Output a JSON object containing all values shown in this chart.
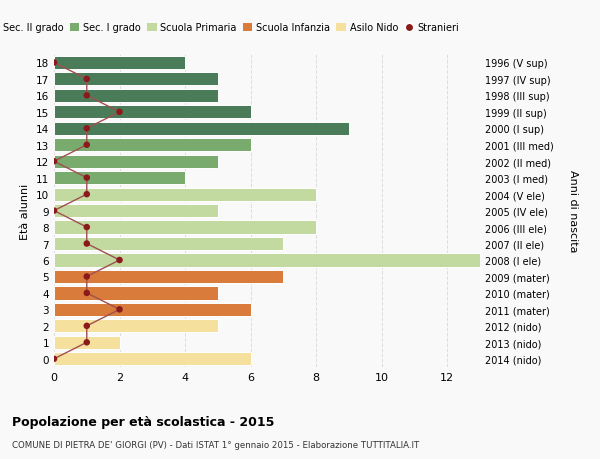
{
  "ages": [
    18,
    17,
    16,
    15,
    14,
    13,
    12,
    11,
    10,
    9,
    8,
    7,
    6,
    5,
    4,
    3,
    2,
    1,
    0
  ],
  "right_labels": [
    "1996 (V sup)",
    "1997 (IV sup)",
    "1998 (III sup)",
    "1999 (II sup)",
    "2000 (I sup)",
    "2001 (III med)",
    "2002 (II med)",
    "2003 (I med)",
    "2004 (V ele)",
    "2005 (IV ele)",
    "2006 (III ele)",
    "2007 (II ele)",
    "2008 (I ele)",
    "2009 (mater)",
    "2010 (mater)",
    "2011 (mater)",
    "2012 (nido)",
    "2013 (nido)",
    "2014 (nido)"
  ],
  "bar_values": [
    4,
    5,
    5,
    6,
    9,
    6,
    5,
    4,
    8,
    5,
    8,
    7,
    13,
    7,
    5,
    6,
    5,
    2,
    6
  ],
  "stranieri": [
    0,
    1,
    1,
    2,
    1,
    1,
    0,
    1,
    1,
    0,
    1,
    1,
    2,
    1,
    1,
    2,
    1,
    1,
    0
  ],
  "bar_colors": [
    "#4a7c59",
    "#4a7c59",
    "#4a7c59",
    "#4a7c59",
    "#4a7c59",
    "#7aab6e",
    "#7aab6e",
    "#7aab6e",
    "#c2d9a0",
    "#c2d9a0",
    "#c2d9a0",
    "#c2d9a0",
    "#c2d9a0",
    "#d97b3a",
    "#d97b3a",
    "#d97b3a",
    "#f5e09e",
    "#f5e09e",
    "#f5e09e"
  ],
  "legend_labels": [
    "Sec. II grado",
    "Sec. I grado",
    "Scuola Primaria",
    "Scuola Infanzia",
    "Asilo Nido",
    "Stranieri"
  ],
  "legend_colors": [
    "#4a7c59",
    "#7aab6e",
    "#c2d9a0",
    "#d97b3a",
    "#f5e09e",
    "#9b1a1a"
  ],
  "title_bold": "Popolazione per età scolastica - 2015",
  "subtitle": "COMUNE DI PIETRA DE' GIORGI (PV) - Dati ISTAT 1° gennaio 2015 - Elaborazione TUTTITALIA.IT",
  "ylabel": "Età alunni",
  "right_ylabel": "Anni di nascita",
  "xlim": [
    0,
    13
  ],
  "ylim_bottom": -0.5,
  "ylim_top": 18.5,
  "background_color": "#f9f9f9",
  "grid_color": "#dddddd",
  "stranieri_color": "#8b1a1a",
  "stranieri_line_color": "#a05050"
}
